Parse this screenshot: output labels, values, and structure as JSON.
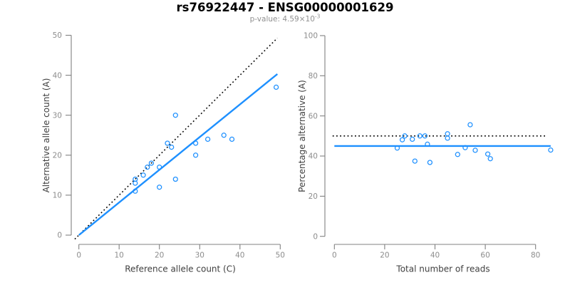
{
  "header": {
    "title": "rs76922447 - ENSG00000001629",
    "subtitle_prefix": "p-value: 4.59×10",
    "subtitle_exponent": "-3"
  },
  "colors": {
    "point": "#1E90FF",
    "fit_line": "#1E90FF",
    "reference_line": "#000000",
    "axis_line": "#808080",
    "tick_label": "#8C8C8C",
    "axis_title": "#404040",
    "title": "#000000",
    "subtitle": "#909090"
  },
  "chart_data": [
    {
      "type": "scatter",
      "panel": "left",
      "xlabel": "Reference allele count (C)",
      "ylabel": "Alternative allele count (A)",
      "xlim": [
        0,
        50
      ],
      "ylim": [
        0,
        50
      ],
      "xticks": [
        0,
        10,
        20,
        30,
        40,
        50
      ],
      "yticks": [
        0,
        10,
        20,
        30,
        40,
        50
      ],
      "grid": false,
      "legend": "none",
      "points": [
        [
          49,
          37
        ],
        [
          24,
          30
        ],
        [
          36,
          25
        ],
        [
          38,
          24
        ],
        [
          32,
          24
        ],
        [
          29,
          23
        ],
        [
          29,
          20
        ],
        [
          23,
          22
        ],
        [
          22,
          23
        ],
        [
          24,
          14
        ],
        [
          20,
          17
        ],
        [
          20,
          12
        ],
        [
          18,
          18
        ],
        [
          17,
          17
        ],
        [
          16,
          15
        ],
        [
          14,
          14
        ],
        [
          14,
          13
        ],
        [
          14,
          11
        ]
      ],
      "lines": [
        {
          "name": "identity-line",
          "style": "dotted",
          "color": "#000000",
          "from": [
            -1,
            -1
          ],
          "to": [
            49.3,
            49.3
          ]
        },
        {
          "name": "fit-line",
          "style": "solid",
          "color": "#1E90FF",
          "from": [
            0,
            0
          ],
          "to": [
            49.3,
            40.3
          ]
        }
      ]
    },
    {
      "type": "scatter",
      "panel": "right",
      "xlabel": "Total number of reads",
      "ylabel": "Percentage alternative (A)",
      "xlim": [
        0,
        87
      ],
      "ylim": [
        0,
        100
      ],
      "xticks": [
        0,
        20,
        40,
        60,
        80
      ],
      "yticks": [
        0,
        20,
        40,
        60,
        80,
        100
      ],
      "grid": false,
      "legend": "none",
      "points": [
        [
          86,
          43
        ],
        [
          54,
          55.6
        ],
        [
          61,
          41
        ],
        [
          62,
          38.7
        ],
        [
          56,
          42.9
        ],
        [
          52,
          44.2
        ],
        [
          49,
          40.8
        ],
        [
          45,
          48.9
        ],
        [
          45,
          51.1
        ],
        [
          38,
          36.8
        ],
        [
          37,
          45.9
        ],
        [
          32,
          37.5
        ],
        [
          36,
          50
        ],
        [
          34,
          50
        ],
        [
          31,
          48.4
        ],
        [
          28,
          50
        ],
        [
          27,
          48.1
        ],
        [
          25,
          44
        ]
      ],
      "lines": [
        {
          "name": "expected-50-percent-line",
          "style": "dotted",
          "color": "#000000",
          "from": [
            -0.7,
            50
          ],
          "to": [
            84.5,
            50
          ]
        },
        {
          "name": "mean-percentage-line",
          "style": "solid",
          "color": "#1E90FF",
          "from": [
            0,
            45
          ],
          "to": [
            86,
            45
          ]
        }
      ]
    }
  ]
}
